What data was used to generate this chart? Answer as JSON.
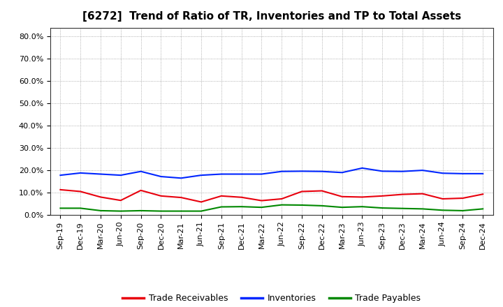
{
  "title": "[6272]  Trend of Ratio of TR, Inventories and TP to Total Assets",
  "labels": [
    "Sep-19",
    "Dec-19",
    "Mar-20",
    "Jun-20",
    "Sep-20",
    "Dec-20",
    "Mar-21",
    "Jun-21",
    "Sep-21",
    "Dec-21",
    "Mar-22",
    "Jun-22",
    "Sep-22",
    "Dec-22",
    "Mar-23",
    "Jun-23",
    "Sep-23",
    "Dec-23",
    "Mar-24",
    "Jun-24",
    "Sep-24",
    "Dec-24"
  ],
  "trade_receivables": [
    0.113,
    0.105,
    0.08,
    0.065,
    0.11,
    0.085,
    0.078,
    0.058,
    0.085,
    0.079,
    0.064,
    0.072,
    0.105,
    0.108,
    0.082,
    0.08,
    0.085,
    0.092,
    0.095,
    0.072,
    0.075,
    0.093
  ],
  "inventories": [
    0.178,
    0.188,
    0.183,
    0.178,
    0.195,
    0.172,
    0.165,
    0.178,
    0.183,
    0.183,
    0.183,
    0.195,
    0.196,
    0.195,
    0.19,
    0.21,
    0.196,
    0.195,
    0.2,
    0.187,
    0.185,
    0.185
  ],
  "trade_payables": [
    0.03,
    0.03,
    0.019,
    0.017,
    0.019,
    0.017,
    0.017,
    0.017,
    0.036,
    0.037,
    0.034,
    0.045,
    0.044,
    0.041,
    0.034,
    0.037,
    0.031,
    0.029,
    0.027,
    0.021,
    0.019,
    0.027
  ],
  "tr_color": "#e8000d",
  "inv_color": "#0026ff",
  "tp_color": "#008800",
  "ylim_min": 0.0,
  "ylim_max": 0.84,
  "yticks": [
    0.0,
    0.1,
    0.2,
    0.3,
    0.4,
    0.5,
    0.6,
    0.7,
    0.8
  ],
  "ytick_labels": [
    "0.0%",
    "10.0%",
    "20.0%",
    "30.0%",
    "40.0%",
    "50.0%",
    "60.0%",
    "70.0%",
    "80.0%"
  ],
  "background_color": "#ffffff",
  "grid_color": "#999999",
  "title_fontsize": 11,
  "tick_fontsize": 8,
  "legend_fontsize": 9
}
